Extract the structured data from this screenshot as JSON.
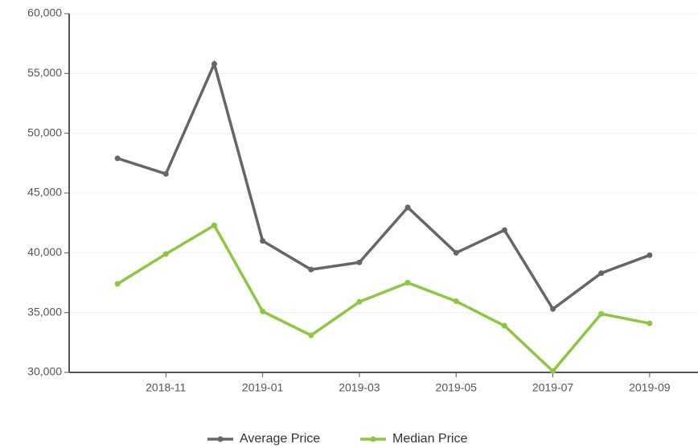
{
  "chart_data": {
    "type": "line",
    "categories": [
      null,
      "2018-11",
      null,
      "2019-01",
      null,
      "2019-03",
      null,
      "2019-05",
      null,
      "2019-07",
      null,
      "2019-09"
    ],
    "series": [
      {
        "name": "Average Price",
        "color": "#666666",
        "values": [
          47900,
          46600,
          55800,
          41000,
          38600,
          39200,
          43800,
          40000,
          41900,
          35300,
          38300,
          39800
        ]
      },
      {
        "name": "Median Price",
        "color": "#8dc63f",
        "values": [
          37400,
          39900,
          42300,
          35100,
          33100,
          35900,
          37500,
          35950,
          33900,
          30100,
          34900,
          34100
        ]
      }
    ],
    "ylim": [
      30000,
      60000
    ],
    "yticks": [
      {
        "value": 30000,
        "label": "30,000"
      },
      {
        "value": 35000,
        "label": "35,000"
      },
      {
        "value": 40000,
        "label": "40,000"
      },
      {
        "value": 45000,
        "label": "45,000"
      },
      {
        "value": 50000,
        "label": "50,000"
      },
      {
        "value": 55000,
        "label": "55,000"
      },
      {
        "value": 60000,
        "label": "60,000"
      }
    ],
    "grid": true,
    "legend": "bottom"
  }
}
